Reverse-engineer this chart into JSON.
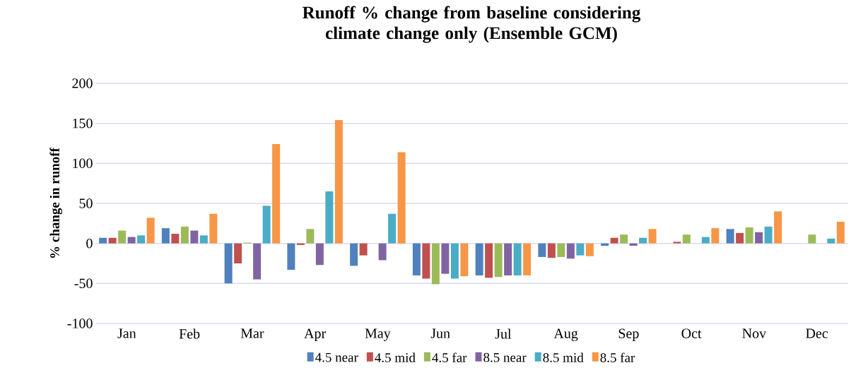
{
  "chart_data": {
    "type": "bar",
    "title": "Runoff % change from baseline considering climate change only (Ensemble GCM)",
    "ylabel": "% change in runoff",
    "categories": [
      "Jan",
      "Feb",
      "Mar",
      "Apr",
      "May",
      "Jun",
      "Jul",
      "Aug",
      "Sep",
      "Oct",
      "Nov",
      "Dec"
    ],
    "series": [
      {
        "name": "4.5 near",
        "color": "#4f81bd",
        "values": [
          7,
          19,
          -50,
          -33,
          -28,
          -40,
          -40,
          -17,
          -3,
          0,
          18,
          0
        ]
      },
      {
        "name": "4.5 mid",
        "color": "#c0504d",
        "values": [
          7,
          12,
          -25,
          -2,
          -15,
          -44,
          -43,
          -18,
          7,
          2,
          13,
          0
        ]
      },
      {
        "name": "4.5 far",
        "color": "#9bbb59",
        "values": [
          16,
          21,
          1,
          18,
          0,
          -51,
          -42,
          -17,
          11,
          11,
          20,
          11
        ]
      },
      {
        "name": "8.5 near",
        "color": "#8064a2",
        "values": [
          8,
          16,
          -45,
          -27,
          -21,
          -38,
          -40,
          -19,
          -3,
          0,
          14,
          0
        ]
      },
      {
        "name": "8.5 mid",
        "color": "#4bacc6",
        "values": [
          10,
          10,
          47,
          65,
          37,
          -44,
          -40,
          -15,
          7,
          8,
          21,
          6
        ]
      },
      {
        "name": "8.5 far",
        "color": "#f79646",
        "values": [
          32,
          37,
          124,
          154,
          114,
          -41,
          -40,
          -16,
          18,
          19,
          40,
          27
        ]
      }
    ],
    "ylim": [
      -100,
      200
    ],
    "yticks": [
      -100,
      -50,
      0,
      50,
      100,
      150,
      200
    ],
    "grid": "y",
    "legend": "bottom"
  }
}
